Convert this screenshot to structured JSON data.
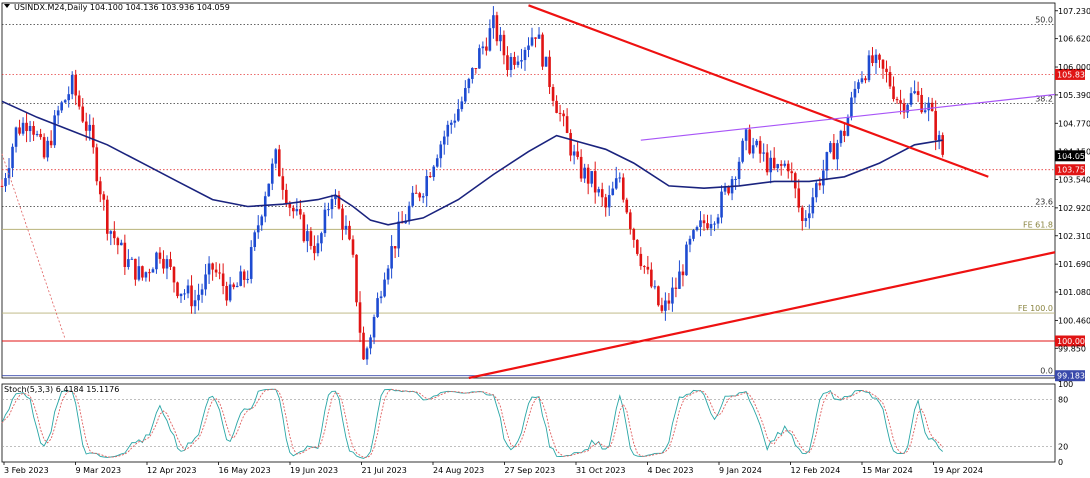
{
  "chart_data": {
    "type": "candlestick",
    "title": "USINDX.M24,Daily  104.100 104.136 103.936 104.059",
    "timeframe": "Daily",
    "colors": {
      "bull": "#1e4bd1",
      "bear": "#e01414",
      "ma": "#1a237e",
      "trendline": "#ee1111",
      "channel": "#a855f7",
      "fib": "#b8b27a",
      "stoch_main": "#2aa6a6",
      "stoch_signal": "#e06060"
    },
    "x_labels": [
      "3 Feb 2023",
      "9 Mar 2023",
      "12 Apr 2023",
      "16 May 2023",
      "19 Jun 2023",
      "21 Jul 2023",
      "24 Aug 2023",
      "27 Sep 2023",
      "31 Oct 2023",
      "4 Dec 2023",
      "9 Jan 2024",
      "12 Feb 2024",
      "15 Mar 2024",
      "19 Apr 2024"
    ],
    "ylim": [
      99.2,
      107.4
    ],
    "y_ticks": [
      "107.230",
      "106.620",
      "106.000",
      "105.390",
      "104.770",
      "104.150",
      "103.540",
      "102.920",
      "102.310",
      "101.690",
      "101.080",
      "100.460",
      "99.850"
    ],
    "price_path": [
      [
        0,
        103.4
      ],
      [
        4,
        104.6
      ],
      [
        8,
        104.9
      ],
      [
        12,
        104.0
      ],
      [
        16,
        105.0
      ],
      [
        20,
        105.6
      ],
      [
        25,
        104.5
      ],
      [
        30,
        102.6
      ],
      [
        35,
        101.8
      ],
      [
        40,
        101.4
      ],
      [
        45,
        102.0
      ],
      [
        50,
        101.2
      ],
      [
        55,
        100.9
      ],
      [
        60,
        101.6
      ],
      [
        65,
        101.0
      ],
      [
        70,
        101.5
      ],
      [
        75,
        103.3
      ],
      [
        78,
        104.0
      ],
      [
        82,
        103.0
      ],
      [
        86,
        102.4
      ],
      [
        90,
        102.0
      ],
      [
        94,
        103.3
      ],
      [
        98,
        102.4
      ],
      [
        100,
        101.7
      ],
      [
        103,
        99.55
      ],
      [
        106,
        100.5
      ],
      [
        109,
        101.6
      ],
      [
        112,
        102.2
      ],
      [
        116,
        102.9
      ],
      [
        120,
        103.4
      ],
      [
        124,
        104.2
      ],
      [
        128,
        104.8
      ],
      [
        132,
        105.4
      ],
      [
        136,
        106.3
      ],
      [
        140,
        106.9
      ],
      [
        144,
        106.1
      ],
      [
        148,
        106.4
      ],
      [
        152,
        106.8
      ],
      [
        156,
        105.7
      ],
      [
        160,
        104.7
      ],
      [
        164,
        103.8
      ],
      [
        168,
        103.5
      ],
      [
        172,
        102.9
      ],
      [
        176,
        103.6
      ],
      [
        180,
        102.3
      ],
      [
        184,
        101.4
      ],
      [
        188,
        100.6
      ],
      [
        192,
        101.2
      ],
      [
        196,
        102.1
      ],
      [
        200,
        102.6
      ],
      [
        204,
        102.9
      ],
      [
        208,
        103.6
      ],
      [
        212,
        104.4
      ],
      [
        216,
        104.1
      ],
      [
        220,
        103.7
      ],
      [
        224,
        103.9
      ],
      [
        228,
        102.6
      ],
      [
        232,
        103.4
      ],
      [
        236,
        104.1
      ],
      [
        240,
        104.6
      ],
      [
        244,
        105.8
      ],
      [
        248,
        106.1
      ],
      [
        252,
        105.8
      ],
      [
        256,
        105.2
      ],
      [
        260,
        105.4
      ],
      [
        264,
        105.1
      ],
      [
        268,
        104.1
      ]
    ],
    "ma_path": [
      [
        0,
        105.25
      ],
      [
        10,
        104.9
      ],
      [
        20,
        104.6
      ],
      [
        30,
        104.3
      ],
      [
        40,
        103.9
      ],
      [
        50,
        103.5
      ],
      [
        60,
        103.1
      ],
      [
        70,
        102.95
      ],
      [
        80,
        103.0
      ],
      [
        90,
        103.1
      ],
      [
        95,
        103.2
      ],
      [
        100,
        102.95
      ],
      [
        105,
        102.65
      ],
      [
        110,
        102.55
      ],
      [
        120,
        102.7
      ],
      [
        130,
        103.1
      ],
      [
        140,
        103.65
      ],
      [
        150,
        104.15
      ],
      [
        158,
        104.5
      ],
      [
        165,
        104.35
      ],
      [
        172,
        104.2
      ],
      [
        180,
        103.9
      ],
      [
        190,
        103.4
      ],
      [
        200,
        103.35
      ],
      [
        210,
        103.4
      ],
      [
        220,
        103.5
      ],
      [
        230,
        103.5
      ],
      [
        240,
        103.6
      ],
      [
        250,
        103.9
      ],
      [
        260,
        104.3
      ],
      [
        268,
        104.4
      ]
    ],
    "horizontal_levels": [
      {
        "value": 106.93,
        "style": "dotted",
        "color": "#333333",
        "label": "50.0"
      },
      {
        "value": 105.838,
        "style": "dotted",
        "color": "#e01414",
        "tag": "105.838",
        "tag_bg": "#e01414"
      },
      {
        "value": 105.2,
        "style": "dotted",
        "color": "#333333",
        "label": "38.2"
      },
      {
        "value": 104.059,
        "style": "none",
        "tag": "104.059",
        "tag_bg": "#000000"
      },
      {
        "value": 103.754,
        "style": "dotted",
        "color": "#e01414",
        "tag": "103.754",
        "tag_bg": "#e01414"
      },
      {
        "value": 102.95,
        "style": "dotted",
        "color": "#333333",
        "label": "23.6"
      },
      {
        "value": 102.45,
        "style": "solid",
        "color": "#b8b27a",
        "label": "FE 61.8"
      },
      {
        "value": 100.62,
        "style": "solid",
        "color": "#b8b27a",
        "label": "FE 100.0"
      },
      {
        "value": 100.009,
        "style": "solid",
        "color": "#e01414",
        "tag": "100.009",
        "tag_bg": "#e01414"
      },
      {
        "value": 99.25,
        "style": "solid",
        "color": "#3949ab",
        "label": "0.0",
        "tag": "99.183",
        "tag_bg": "#3949ab"
      }
    ],
    "trendlines": [
      {
        "from": [
          150,
          107.35
        ],
        "to": [
          281,
          103.6
        ],
        "color": "#ee1111"
      },
      {
        "from": [
          133,
          99.2
        ],
        "to": [
          300,
          101.95
        ],
        "color": "#ee1111"
      },
      {
        "from": [
          182,
          104.4
        ],
        "to": [
          300,
          105.4
        ],
        "color": "#a855f7"
      }
    ],
    "stochastic": {
      "label": "Stoch(5,3,3) 6.4184 15.1176",
      "y_ticks": [
        "100",
        "80",
        "20",
        "0"
      ],
      "levels": [
        80,
        20
      ]
    }
  }
}
